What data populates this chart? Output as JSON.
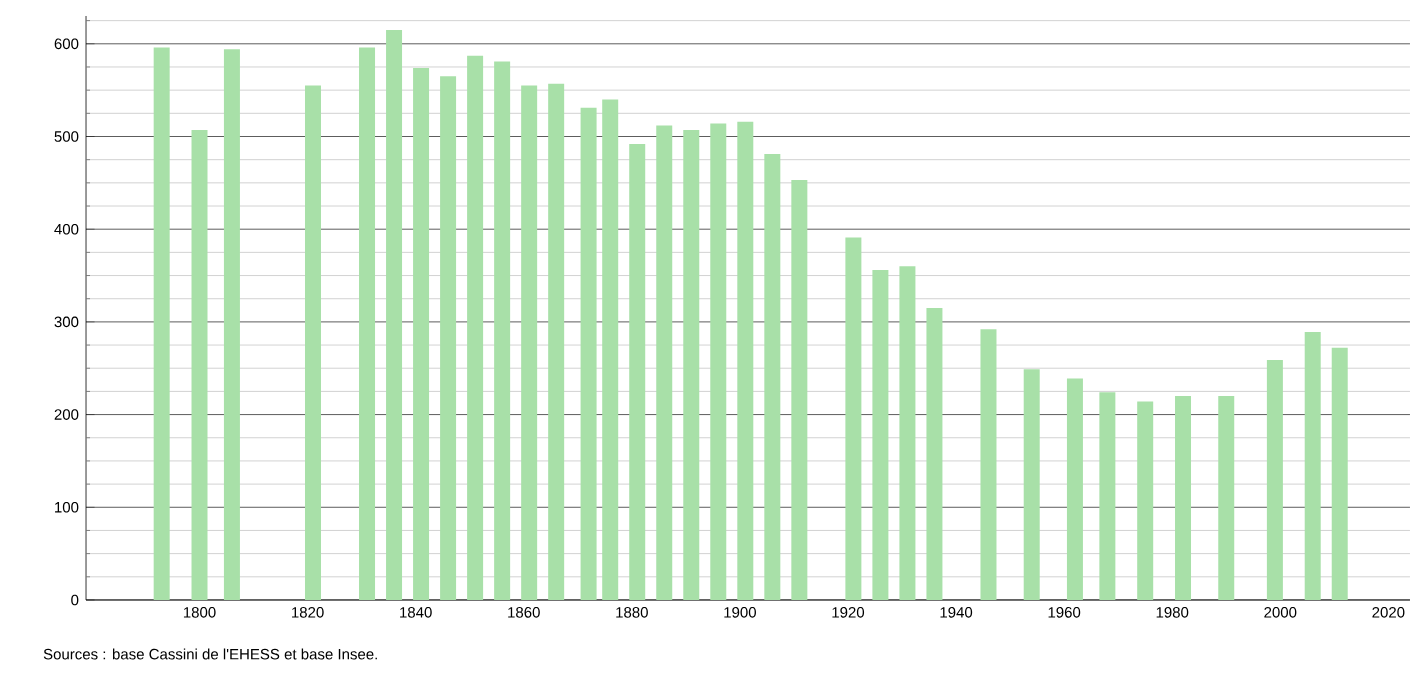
{
  "chart_data": {
    "type": "bar",
    "x": [
      1793,
      1800,
      1806,
      1821,
      1831,
      1836,
      1841,
      1846,
      1851,
      1856,
      1861,
      1866,
      1872,
      1876,
      1881,
      1886,
      1891,
      1896,
      1901,
      1906,
      1911,
      1921,
      1926,
      1931,
      1936,
      1946,
      1954,
      1962,
      1968,
      1975,
      1982,
      1990,
      1999,
      2006,
      2011
    ],
    "values": [
      596,
      507,
      594,
      555,
      596,
      615,
      574,
      565,
      587,
      581,
      555,
      557,
      531,
      540,
      492,
      512,
      507,
      514,
      516,
      481,
      453,
      391,
      356,
      360,
      315,
      292,
      249,
      239,
      224,
      214,
      220,
      220,
      259,
      289,
      272
    ],
    "color": "#a8e0a8",
    "xlim": [
      1779,
      2024
    ],
    "ylim": [
      0,
      630
    ],
    "xticks": [
      1800,
      1820,
      1840,
      1860,
      1880,
      1900,
      1920,
      1940,
      1960,
      1980,
      2000,
      2020
    ],
    "yticks": [
      0,
      {
        "value": 25,
        "label": null
      },
      {
        "value": 50,
        "label": null
      },
      {
        "value": 75,
        "label": null
      },
      100,
      {
        "value": 125,
        "label": null
      },
      {
        "value": 150,
        "label": null
      },
      {
        "value": 175,
        "label": null
      },
      200,
      {
        "value": 225,
        "label": null
      },
      {
        "value": 250,
        "label": null
      },
      {
        "value": 275,
        "label": null
      },
      300,
      {
        "value": 325,
        "label": null
      },
      {
        "value": 350,
        "label": null
      },
      {
        "value": 375,
        "label": null
      },
      400,
      {
        "value": 425,
        "label": null
      },
      {
        "value": 450,
        "label": null
      },
      {
        "value": 475,
        "label": null
      },
      500,
      {
        "value": 525,
        "label": null
      },
      {
        "value": 550,
        "label": null
      },
      {
        "value": 575,
        "label": null
      },
      600,
      {
        "value": 625,
        "label": null
      }
    ],
    "grid": "y",
    "annotations": [
      "Sources : base Cassini de l'EHESS et base Insee."
    ]
  }
}
